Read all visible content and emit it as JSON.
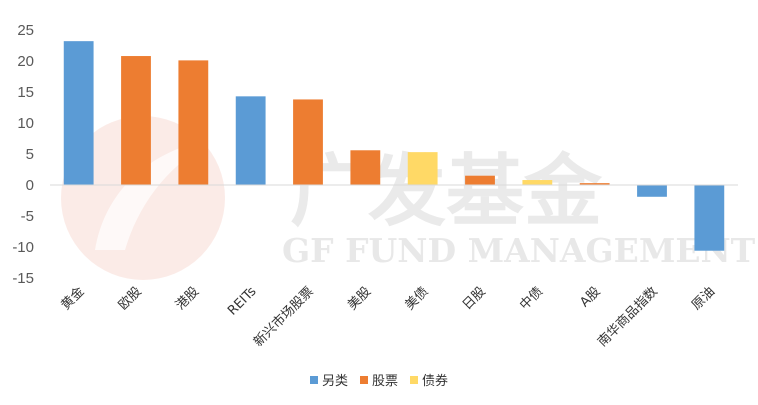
{
  "watermark": {
    "cn": "广发基金",
    "en": "GF FUND MANAGEMENT"
  },
  "colors": {
    "另类": "#5B9BD5",
    "股票": "#ED7D31",
    "债券": "#FFD966"
  },
  "chart_data": {
    "type": "bar",
    "title": "",
    "xlabel": "",
    "ylabel": "",
    "ylim": [
      -15,
      25
    ],
    "yticks": [
      -15,
      -10,
      -5,
      0,
      5,
      10,
      15,
      20,
      25
    ],
    "grid": false,
    "legend_position": "bottom",
    "legend": [
      "另类",
      "股票",
      "债券"
    ],
    "categories": [
      "黄金",
      "欧股",
      "港股",
      "REITs",
      "新兴市场股票",
      "美股",
      "美债",
      "日股",
      "中债",
      "A股",
      "南华商品指数",
      "原油"
    ],
    "values": [
      23.2,
      20.8,
      20.1,
      14.3,
      13.8,
      5.6,
      5.3,
      1.5,
      0.8,
      0.3,
      -1.9,
      -10.6
    ],
    "groups": [
      "另类",
      "股票",
      "股票",
      "另类",
      "股票",
      "股票",
      "债券",
      "股票",
      "债券",
      "股票",
      "另类",
      "另类"
    ]
  }
}
